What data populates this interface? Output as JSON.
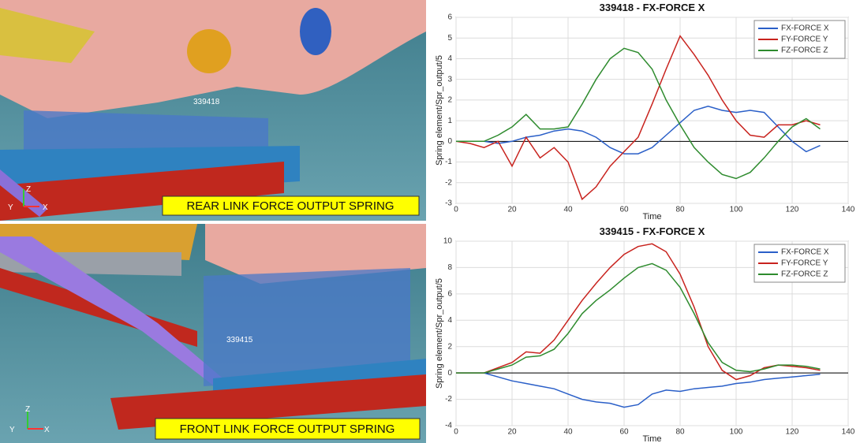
{
  "panels": [
    {
      "id": "339418",
      "label": "REAR LINK FORCE OUTPUT SPRING",
      "axes": [
        "Z",
        "Y",
        "X"
      ]
    },
    {
      "id": "339415",
      "label": "FRONT LINK FORCE OUTPUT SPRING",
      "axes": [
        "Z",
        "Y",
        "X"
      ]
    }
  ],
  "chart_data": [
    {
      "type": "line",
      "title": "339418 - FX-FORCE X",
      "x_label": "Time",
      "y_label": "Spring element/Spr_output/5",
      "xlim": [
        0,
        140
      ],
      "xticks": [
        0,
        20,
        40,
        60,
        80,
        100,
        120,
        140
      ],
      "ylim": [
        -3,
        6
      ],
      "yticks": [
        -3,
        -2,
        -1,
        0,
        1,
        2,
        3,
        4,
        5,
        6
      ],
      "grid": true,
      "legend": "top-right",
      "x": [
        0,
        5,
        10,
        15,
        20,
        25,
        30,
        35,
        40,
        45,
        50,
        55,
        60,
        65,
        70,
        75,
        80,
        85,
        90,
        95,
        100,
        105,
        110,
        115,
        120,
        125,
        130
      ],
      "series": [
        {
          "name": "FX-FORCE X",
          "color": "#2a5fc8",
          "values": [
            0,
            0,
            0,
            -0.1,
            0,
            0.2,
            0.3,
            0.5,
            0.6,
            0.5,
            0.2,
            -0.3,
            -0.6,
            -0.6,
            -0.3,
            0.3,
            0.9,
            1.5,
            1.7,
            1.5,
            1.4,
            1.5,
            1.4,
            0.7,
            0,
            -0.5,
            -0.2
          ]
        },
        {
          "name": "FY-FORCE Y",
          "color": "#c8231e",
          "values": [
            0,
            -0.1,
            -0.3,
            0,
            -1.2,
            0.2,
            -0.8,
            -0.3,
            -1,
            -2.8,
            -2.2,
            -1.2,
            -0.5,
            0.2,
            1.8,
            3.5,
            5.1,
            4.2,
            3.2,
            2,
            1,
            0.3,
            0.2,
            0.8,
            0.8,
            1,
            0.8
          ]
        },
        {
          "name": "FZ-FORCE Z",
          "color": "#2e8b2e",
          "values": [
            0,
            0,
            0,
            0.3,
            0.7,
            1.3,
            0.6,
            0.6,
            0.7,
            1.8,
            3,
            4,
            4.5,
            4.3,
            3.5,
            2,
            0.8,
            -0.3,
            -1,
            -1.6,
            -1.8,
            -1.5,
            -0.8,
            0,
            0.7,
            1.1,
            0.6
          ]
        }
      ]
    },
    {
      "type": "line",
      "title": "339415 - FX-FORCE X",
      "x_label": "Time",
      "y_label": "Spring element/Spr_output/5",
      "xlim": [
        0,
        140
      ],
      "xticks": [
        0,
        20,
        40,
        60,
        80,
        100,
        120,
        140
      ],
      "ylim": [
        -4,
        10
      ],
      "yticks": [
        -4,
        -2,
        0,
        2,
        4,
        6,
        8,
        10
      ],
      "grid": true,
      "legend": "top-right",
      "x": [
        0,
        5,
        10,
        15,
        20,
        25,
        30,
        35,
        40,
        45,
        50,
        55,
        60,
        65,
        70,
        75,
        80,
        85,
        90,
        95,
        100,
        105,
        110,
        115,
        120,
        125,
        130
      ],
      "series": [
        {
          "name": "FX-FORCE X",
          "color": "#2a5fc8",
          "values": [
            0,
            0,
            0,
            -0.3,
            -0.6,
            -0.8,
            -1,
            -1.2,
            -1.6,
            -2,
            -2.2,
            -2.3,
            -2.6,
            -2.4,
            -1.6,
            -1.3,
            -1.4,
            -1.2,
            -1.1,
            -1,
            -0.8,
            -0.7,
            -0.5,
            -0.4,
            -0.3,
            -0.2,
            -0.1
          ]
        },
        {
          "name": "FY-FORCE Y",
          "color": "#c8231e",
          "values": [
            0,
            0,
            0,
            0.4,
            0.8,
            1.6,
            1.5,
            2.5,
            4,
            5.5,
            6.8,
            8,
            9,
            9.6,
            9.8,
            9.2,
            7.5,
            5,
            2,
            0.2,
            -0.5,
            -0.2,
            0.4,
            0.6,
            0.5,
            0.4,
            0.2
          ]
        },
        {
          "name": "FZ-FORCE Z",
          "color": "#2e8b2e",
          "values": [
            0,
            0,
            0,
            0.3,
            0.6,
            1.2,
            1.3,
            1.8,
            3,
            4.5,
            5.5,
            6.3,
            7.2,
            8,
            8.3,
            7.8,
            6.5,
            4.5,
            2.3,
            0.8,
            0.2,
            0.1,
            0.3,
            0.6,
            0.6,
            0.5,
            0.3
          ]
        }
      ]
    }
  ]
}
